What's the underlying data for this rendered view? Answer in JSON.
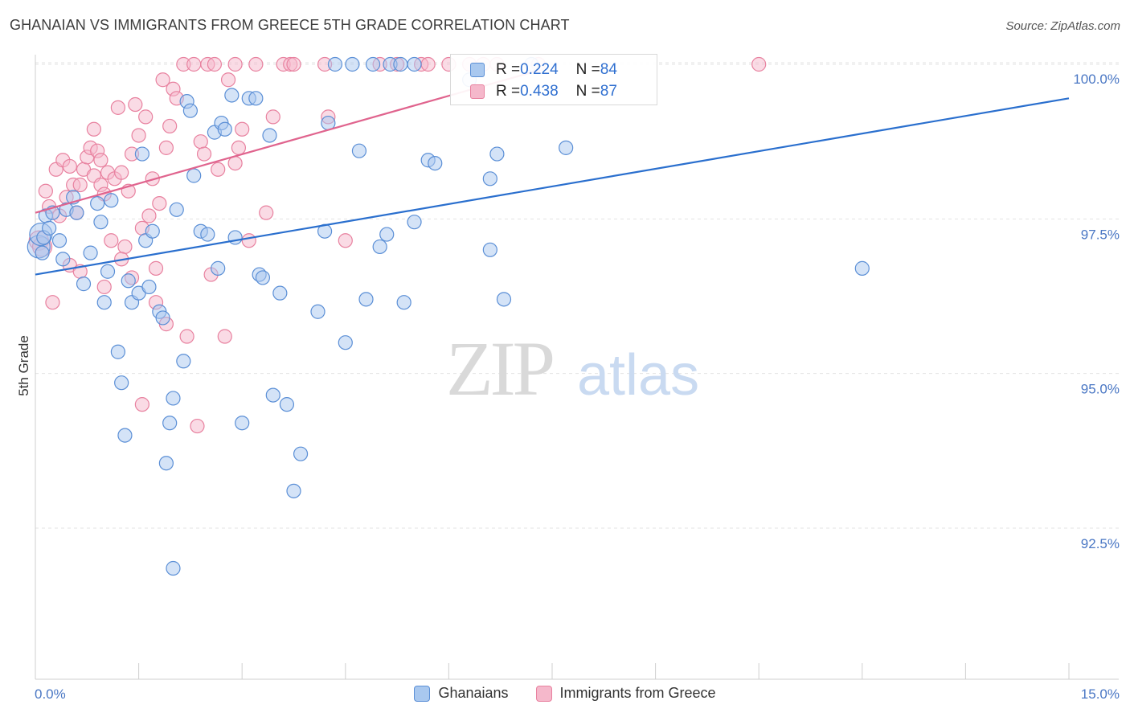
{
  "header": {
    "title": "GHANAIAN VS IMMIGRANTS FROM GREECE 5TH GRADE CORRELATION CHART",
    "source": "Source: ZipAtlas.com"
  },
  "watermark": {
    "zip": "ZIP",
    "atlas": "atlas"
  },
  "legend": {
    "row1": {
      "r_label": "R = ",
      "r_value": "0.224",
      "n_label": "N = ",
      "n_value": "84"
    },
    "row2": {
      "r_label": "R = ",
      "r_value": "0.438",
      "n_label": "N = ",
      "n_value": "87"
    }
  },
  "bottom_legend": {
    "series1": "Ghanaians",
    "series2": "Immigrants from Greece"
  },
  "colors": {
    "blue_fill": "#a9c8ef",
    "blue_stroke": "#5b8fd6",
    "blue_line": "#2a6fce",
    "pink_fill": "#f5b8cb",
    "pink_stroke": "#e8819f",
    "pink_line": "#e0648e",
    "grid": "#e3e3e3",
    "tick_text": "#4a77c4"
  },
  "chart_data": {
    "type": "scatter",
    "title": "GHANAIAN VS IMMIGRANTS FROM GREECE 5TH GRADE CORRELATION CHART",
    "xlabel": "",
    "ylabel": "5th Grade",
    "xlim": [
      0.0,
      15.0
    ],
    "ylim": [
      90.0,
      100.2
    ],
    "x_tick_labels": [
      "0.0%",
      "15.0%"
    ],
    "y_ticks": [
      92.5,
      95.0,
      97.5,
      100.0
    ],
    "y_tick_labels": [
      "92.5%",
      "95.0%",
      "97.5%",
      "100.0%"
    ],
    "grid": true,
    "legend_position": "top-center",
    "series": [
      {
        "name": "Ghanaians",
        "r": 0.224,
        "n": 84,
        "trend": {
          "x": [
            0.0,
            15.0
          ],
          "y": [
            96.6,
            99.45
          ]
        },
        "points": [
          [
            0.05,
            97.05
          ],
          [
            0.08,
            97.25
          ],
          [
            0.1,
            96.95
          ],
          [
            0.12,
            97.2
          ],
          [
            0.15,
            97.55
          ],
          [
            0.2,
            97.35
          ],
          [
            0.25,
            97.6
          ],
          [
            0.35,
            97.15
          ],
          [
            0.4,
            96.85
          ],
          [
            0.45,
            97.65
          ],
          [
            0.55,
            97.85
          ],
          [
            0.6,
            97.6
          ],
          [
            0.7,
            96.45
          ],
          [
            0.8,
            96.95
          ],
          [
            0.9,
            97.75
          ],
          [
            0.95,
            97.45
          ],
          [
            1.0,
            96.15
          ],
          [
            1.05,
            96.65
          ],
          [
            1.1,
            97.8
          ],
          [
            1.2,
            95.35
          ],
          [
            1.25,
            94.85
          ],
          [
            1.3,
            94.0
          ],
          [
            1.35,
            96.5
          ],
          [
            1.4,
            96.15
          ],
          [
            1.5,
            96.3
          ],
          [
            1.55,
            98.55
          ],
          [
            1.6,
            97.15
          ],
          [
            1.65,
            96.4
          ],
          [
            1.7,
            97.3
          ],
          [
            1.8,
            96.0
          ],
          [
            1.85,
            95.9
          ],
          [
            1.9,
            93.55
          ],
          [
            1.95,
            94.2
          ],
          [
            2.0,
            94.6
          ],
          [
            2.05,
            97.65
          ],
          [
            2.15,
            95.2
          ],
          [
            2.2,
            99.4
          ],
          [
            2.25,
            99.25
          ],
          [
            2.3,
            98.2
          ],
          [
            2.4,
            97.3
          ],
          [
            2.5,
            97.25
          ],
          [
            2.6,
            98.9
          ],
          [
            2.65,
            96.7
          ],
          [
            2.7,
            99.05
          ],
          [
            2.75,
            98.95
          ],
          [
            2.85,
            99.5
          ],
          [
            2.9,
            97.2
          ],
          [
            3.0,
            94.2
          ],
          [
            3.1,
            99.45
          ],
          [
            3.2,
            99.45
          ],
          [
            3.25,
            96.6
          ],
          [
            3.3,
            96.55
          ],
          [
            3.4,
            98.85
          ],
          [
            3.45,
            94.65
          ],
          [
            3.55,
            96.3
          ],
          [
            3.65,
            94.5
          ],
          [
            3.75,
            93.1
          ],
          [
            3.85,
            93.7
          ],
          [
            4.1,
            96.0
          ],
          [
            4.2,
            97.3
          ],
          [
            4.25,
            99.05
          ],
          [
            4.35,
            100.0
          ],
          [
            4.5,
            95.5
          ],
          [
            4.6,
            100.0
          ],
          [
            4.7,
            98.6
          ],
          [
            4.8,
            96.2
          ],
          [
            4.9,
            100.0
          ],
          [
            5.0,
            97.05
          ],
          [
            5.1,
            97.25
          ],
          [
            5.15,
            100.0
          ],
          [
            5.3,
            100.0
          ],
          [
            5.35,
            96.15
          ],
          [
            5.5,
            97.45
          ],
          [
            5.5,
            100.0
          ],
          [
            5.7,
            98.45
          ],
          [
            5.8,
            98.4
          ],
          [
            6.3,
            99.75
          ],
          [
            6.6,
            97.0
          ],
          [
            6.6,
            98.15
          ],
          [
            6.7,
            98.55
          ],
          [
            6.8,
            96.2
          ],
          [
            7.2,
            100.0
          ],
          [
            7.7,
            98.65
          ],
          [
            12.0,
            96.7
          ],
          [
            2.0,
            91.85
          ]
        ]
      },
      {
        "name": "Immigrants from Greece",
        "r": 0.438,
        "n": 87,
        "trend": {
          "x": [
            0.0,
            7.3
          ],
          "y": [
            97.6,
            99.9
          ]
        },
        "points": [
          [
            0.05,
            97.15
          ],
          [
            0.1,
            97.05
          ],
          [
            0.15,
            97.95
          ],
          [
            0.2,
            97.7
          ],
          [
            0.25,
            96.15
          ],
          [
            0.3,
            98.3
          ],
          [
            0.35,
            97.55
          ],
          [
            0.4,
            98.45
          ],
          [
            0.45,
            97.85
          ],
          [
            0.5,
            98.35
          ],
          [
            0.55,
            98.05
          ],
          [
            0.6,
            97.6
          ],
          [
            0.65,
            98.05
          ],
          [
            0.7,
            98.3
          ],
          [
            0.75,
            98.5
          ],
          [
            0.8,
            98.65
          ],
          [
            0.85,
            98.2
          ],
          [
            0.9,
            98.6
          ],
          [
            0.95,
            98.05
          ],
          [
            1.0,
            97.9
          ],
          [
            1.05,
            98.25
          ],
          [
            1.1,
            97.15
          ],
          [
            1.15,
            98.15
          ],
          [
            1.2,
            99.3
          ],
          [
            1.25,
            98.25
          ],
          [
            1.3,
            97.05
          ],
          [
            1.35,
            97.95
          ],
          [
            1.4,
            98.55
          ],
          [
            1.45,
            99.35
          ],
          [
            1.5,
            98.85
          ],
          [
            1.55,
            97.35
          ],
          [
            1.6,
            99.15
          ],
          [
            1.65,
            97.55
          ],
          [
            1.7,
            98.15
          ],
          [
            1.75,
            96.7
          ],
          [
            1.8,
            97.75
          ],
          [
            1.85,
            99.75
          ],
          [
            1.9,
            98.65
          ],
          [
            1.95,
            99.0
          ],
          [
            2.0,
            99.6
          ],
          [
            2.05,
            99.45
          ],
          [
            2.15,
            100.0
          ],
          [
            2.2,
            95.6
          ],
          [
            2.3,
            100.0
          ],
          [
            2.4,
            98.75
          ],
          [
            2.45,
            98.55
          ],
          [
            2.5,
            100.0
          ],
          [
            2.55,
            96.6
          ],
          [
            2.6,
            100.0
          ],
          [
            2.65,
            98.3
          ],
          [
            2.75,
            95.6
          ],
          [
            2.8,
            99.75
          ],
          [
            2.9,
            100.0
          ],
          [
            2.95,
            98.65
          ],
          [
            3.0,
            98.95
          ],
          [
            3.1,
            97.15
          ],
          [
            3.2,
            100.0
          ],
          [
            3.35,
            97.6
          ],
          [
            3.45,
            99.15
          ],
          [
            3.6,
            100.0
          ],
          [
            3.7,
            100.0
          ],
          [
            3.75,
            100.0
          ],
          [
            4.2,
            100.0
          ],
          [
            4.25,
            99.15
          ],
          [
            4.5,
            97.15
          ],
          [
            5.0,
            100.0
          ],
          [
            5.25,
            100.0
          ],
          [
            5.6,
            100.0
          ],
          [
            5.7,
            100.0
          ],
          [
            6.0,
            100.0
          ],
          [
            6.3,
            100.0
          ],
          [
            6.5,
            100.0
          ],
          [
            6.7,
            100.0
          ],
          [
            7.3,
            100.0
          ],
          [
            0.5,
            96.75
          ],
          [
            0.65,
            96.65
          ],
          [
            1.0,
            96.4
          ],
          [
            1.4,
            96.55
          ],
          [
            1.55,
            94.5
          ],
          [
            1.9,
            95.8
          ],
          [
            2.35,
            94.15
          ],
          [
            10.5,
            100.0
          ],
          [
            0.85,
            98.95
          ],
          [
            1.25,
            96.85
          ],
          [
            0.95,
            98.45
          ],
          [
            1.75,
            96.15
          ],
          [
            2.9,
            98.4
          ]
        ]
      }
    ]
  }
}
